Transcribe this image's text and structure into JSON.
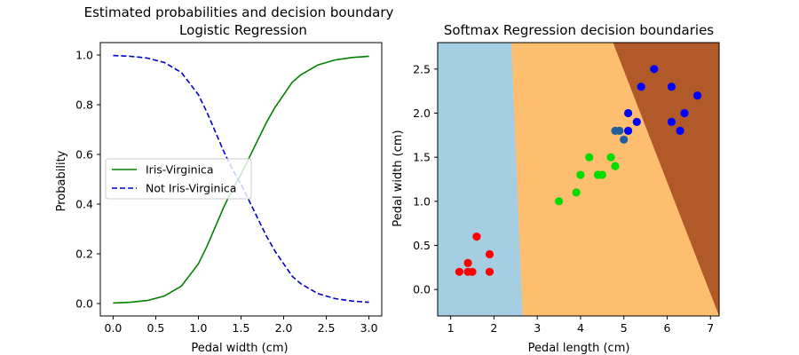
{
  "chart_data": [
    {
      "type": "line",
      "title": "Estimated probabilities and decision boundary\nLogistic Regression",
      "xlabel": "Pedal width (cm)",
      "ylabel": "Probability",
      "xlim": [
        -0.15,
        3.15
      ],
      "ylim": [
        -0.05,
        1.05
      ],
      "xticks": [
        0.0,
        0.5,
        1.0,
        1.5,
        2.0,
        2.5,
        3.0
      ],
      "xtick_labels": [
        "0.0",
        "0.5",
        "1.0",
        "1.5",
        "2.0",
        "2.5",
        "3.0"
      ],
      "yticks": [
        0.0,
        0.2,
        0.4,
        0.6,
        0.8,
        1.0
      ],
      "ytick_labels": [
        "0.0",
        "0.2",
        "0.4",
        "0.6",
        "0.8",
        "1.0"
      ],
      "grid": false,
      "legend_position": "center-left",
      "x": [
        0.0,
        0.2,
        0.4,
        0.6,
        0.8,
        1.0,
        1.1,
        1.2,
        1.3,
        1.4,
        1.5,
        1.6,
        1.7,
        1.8,
        1.9,
        2.0,
        2.1,
        2.2,
        2.4,
        2.6,
        2.8,
        3.0
      ],
      "series": [
        {
          "name": "Iris-Virginica",
          "color": "#008000",
          "style": "solid",
          "values": [
            0.002,
            0.005,
            0.012,
            0.03,
            0.07,
            0.16,
            0.23,
            0.31,
            0.39,
            0.46,
            0.52,
            0.59,
            0.66,
            0.73,
            0.79,
            0.84,
            0.89,
            0.92,
            0.96,
            0.98,
            0.99,
            0.995
          ]
        },
        {
          "name": "Not Iris-Virginica",
          "color": "#0000cc",
          "style": "dashed",
          "values": [
            0.998,
            0.995,
            0.988,
            0.97,
            0.93,
            0.84,
            0.77,
            0.69,
            0.61,
            0.54,
            0.48,
            0.41,
            0.34,
            0.27,
            0.21,
            0.16,
            0.11,
            0.08,
            0.04,
            0.02,
            0.01,
            0.005
          ]
        }
      ]
    },
    {
      "type": "scatter",
      "title": "Softmax Regression decision boundaries",
      "xlabel": "Pedal length (cm)",
      "ylabel": "Pedal width (cm)",
      "xlim": [
        0.7,
        7.2
      ],
      "ylim": [
        -0.3,
        2.8
      ],
      "xticks": [
        1,
        2,
        3,
        4,
        5,
        6,
        7
      ],
      "xtick_labels": [
        "1",
        "2",
        "3",
        "4",
        "5",
        "6",
        "7"
      ],
      "yticks": [
        0.0,
        0.5,
        1.0,
        1.5,
        2.0,
        2.5
      ],
      "ytick_labels": [
        "0.0",
        "0.5",
        "1.0",
        "1.5",
        "2.0",
        "2.5"
      ],
      "grid": false,
      "regions": [
        {
          "class": 0,
          "color": "#a6cee3",
          "boundary": [
            [
              2.4,
              2.8
            ],
            [
              2.66,
              -0.3
            ]
          ]
        },
        {
          "class": 1,
          "color": "#fdbf6f"
        },
        {
          "class": 2,
          "color": "#b15928",
          "boundary": [
            [
              4.75,
              2.8
            ],
            [
              7.2,
              -0.3
            ]
          ]
        }
      ],
      "series": [
        {
          "class": 0,
          "color": "#ff0000",
          "points": [
            [
              1.2,
              0.2
            ],
            [
              1.4,
              0.3
            ],
            [
              1.4,
              0.2
            ],
            [
              1.5,
              0.2
            ],
            [
              1.6,
              0.6
            ],
            [
              1.9,
              0.4
            ],
            [
              1.9,
              0.2
            ]
          ]
        },
        {
          "class": 1,
          "color": "#00dd00",
          "points": [
            [
              3.5,
              1.0
            ],
            [
              3.9,
              1.1
            ],
            [
              4.0,
              1.3
            ],
            [
              4.2,
              1.5
            ],
            [
              4.4,
              1.3
            ],
            [
              4.5,
              1.3
            ],
            [
              4.7,
              1.5
            ],
            [
              4.8,
              1.4
            ]
          ]
        },
        {
          "class": 2,
          "color": "#0000ff",
          "points": [
            [
              5.1,
              1.8
            ],
            [
              5.1,
              2.0
            ],
            [
              5.3,
              1.9
            ],
            [
              5.4,
              2.3
            ],
            [
              5.7,
              2.5
            ],
            [
              6.1,
              2.3
            ],
            [
              6.1,
              1.9
            ],
            [
              6.3,
              1.8
            ],
            [
              6.4,
              2.0
            ],
            [
              6.7,
              2.2
            ]
          ]
        },
        {
          "class": 2,
          "color": "#1f5fa0",
          "points": [
            [
              4.8,
              1.8
            ],
            [
              4.9,
              1.8
            ],
            [
              5.0,
              1.7
            ]
          ]
        }
      ]
    }
  ]
}
